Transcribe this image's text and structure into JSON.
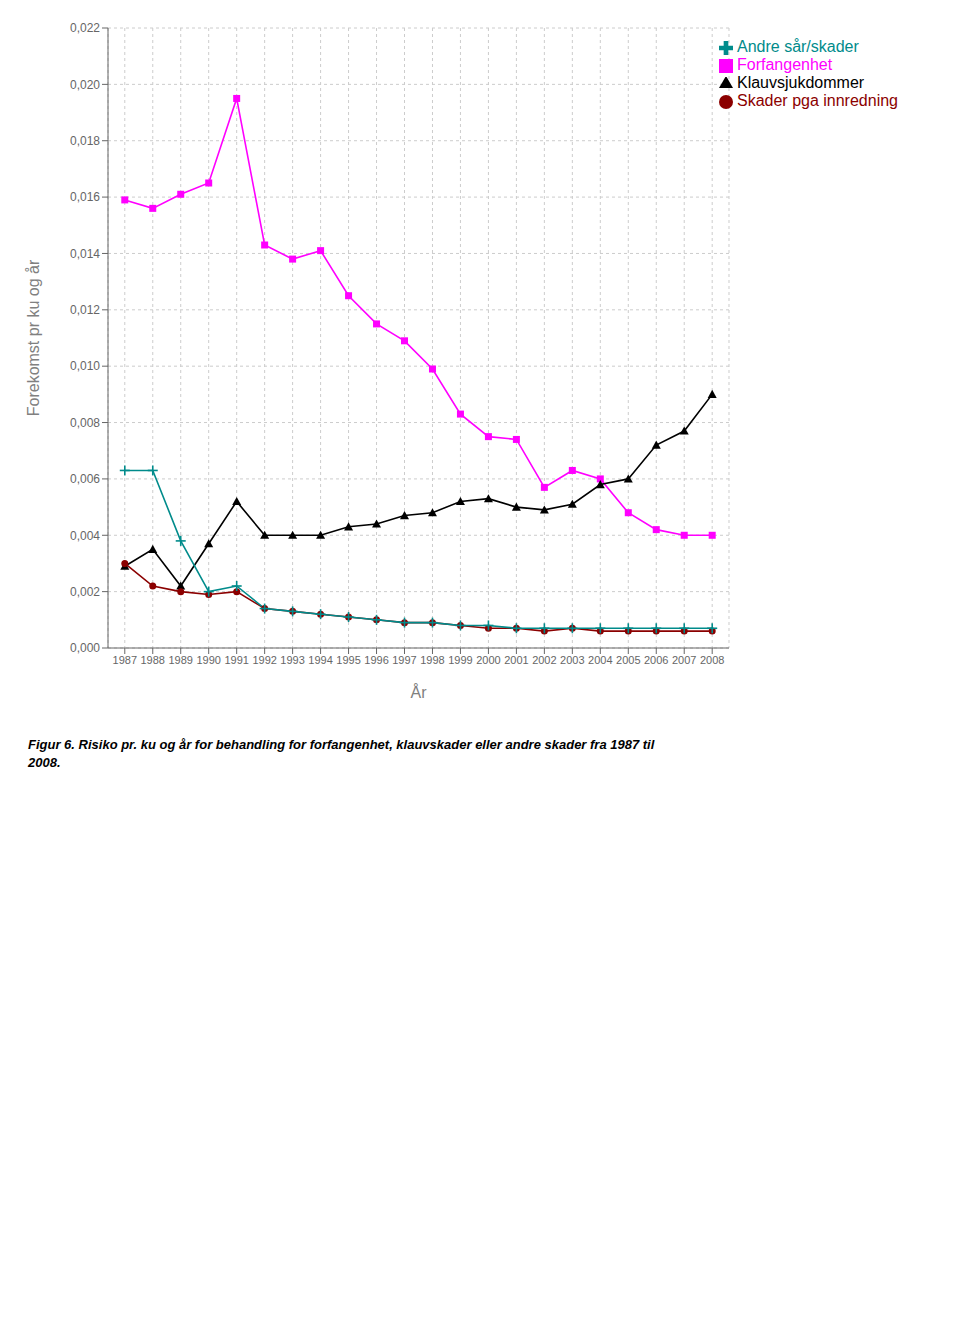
{
  "chart_data": {
    "type": "line",
    "title": "Figur 6. Risiko pr. ku og år for behandling for forfangenhet, klauvskader eller andre skader fra 1987 til\n2008.",
    "x_label": "År",
    "y_label": "Forekomst pr ku og år",
    "x": [
      1987,
      1988,
      1989,
      1990,
      1991,
      1992,
      1993,
      1994,
      1995,
      1996,
      1997,
      1998,
      1999,
      2000,
      2001,
      2002,
      2003,
      2004,
      2005,
      2006,
      2007,
      2008
    ],
    "series": [
      {
        "name": "Forfangenhet",
        "color": "#FF00FF",
        "marker": "square",
        "values": [
          0.0159,
          0.0156,
          0.0161,
          0.0165,
          0.0195,
          0.0143,
          0.0138,
          0.0141,
          0.0125,
          0.0115,
          0.0109,
          0.0099,
          0.0083,
          0.0075,
          0.0074,
          0.0057,
          0.0063,
          0.006,
          0.0048,
          0.0042,
          0.004,
          0.004
        ]
      },
      {
        "name": "Klauvsjukdommer",
        "color": "#000000",
        "marker": "triangle",
        "values": [
          0.0029,
          0.0035,
          0.0022,
          0.0037,
          0.0052,
          0.004,
          0.004,
          0.004,
          0.0043,
          0.0044,
          0.0047,
          0.0048,
          0.0052,
          0.0053,
          0.005,
          0.0049,
          0.0051,
          0.0058,
          0.006,
          0.0072,
          0.0077,
          0.009
        ]
      },
      {
        "name": "Skader pga innredning",
        "color": "#8B0000",
        "marker": "circle",
        "values": [
          0.003,
          0.0022,
          0.002,
          0.0019,
          0.002,
          0.0014,
          0.0013,
          0.0012,
          0.0011,
          0.001,
          0.0009,
          0.0009,
          0.0008,
          0.0007,
          0.0007,
          0.0006,
          0.0007,
          0.0006,
          0.0006,
          0.0006,
          0.0006,
          0.0006
        ]
      },
      {
        "name": "Andre sår/skader",
        "color": "#008B8B",
        "marker": "plus",
        "values": [
          0.0063,
          0.0063,
          0.0038,
          0.002,
          0.0022,
          0.0014,
          0.0013,
          0.0012,
          0.0011,
          0.001,
          0.0009,
          0.0009,
          0.0008,
          0.0008,
          0.0007,
          0.0007,
          0.0007,
          0.0007,
          0.0007,
          0.0007,
          0.0007,
          0.0007
        ]
      }
    ],
    "xlim": [
      1986.4,
      2008.6
    ],
    "xticks": [
      1987,
      1988,
      1989,
      1990,
      1991,
      1992,
      1993,
      1994,
      1995,
      1996,
      1997,
      1998,
      1999,
      2000,
      2001,
      2002,
      2003,
      2004,
      2005,
      2006,
      2007,
      2008
    ],
    "ylim": [
      0.0,
      0.022
    ],
    "yticks": [
      {
        "value": 0.0,
        "label": "0,000"
      },
      {
        "value": 0.002,
        "label": "0,002"
      },
      {
        "value": 0.004,
        "label": "0,004"
      },
      {
        "value": 0.006,
        "label": "0,006"
      },
      {
        "value": 0.008,
        "label": "0,008"
      },
      {
        "value": 0.01,
        "label": "0,010"
      },
      {
        "value": 0.012,
        "label": "0,012"
      },
      {
        "value": 0.014,
        "label": "0,014"
      },
      {
        "value": 0.016,
        "label": "0,016"
      },
      {
        "value": 0.018,
        "label": "0,018"
      },
      {
        "value": 0.02,
        "label": "0,020"
      },
      {
        "value": 0.022,
        "label": "0,022"
      }
    ],
    "grid": true,
    "legend": "upper right"
  }
}
